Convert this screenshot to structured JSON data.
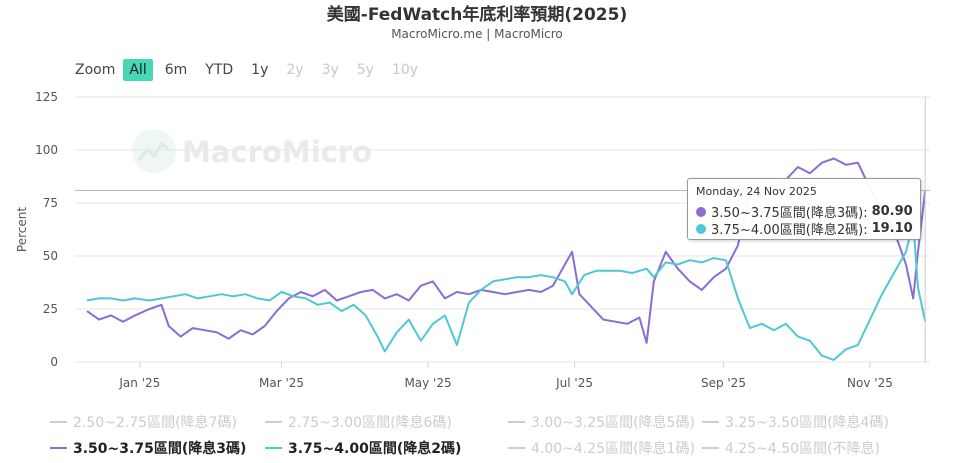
{
  "header": {
    "title": "美國-FedWatch年底利率預期(2025)",
    "subtitle": "MacroMicro.me | MacroMicro"
  },
  "zoom": {
    "label": "Zoom",
    "buttons": [
      {
        "label": "All",
        "state": "active"
      },
      {
        "label": "6m",
        "state": "enabled"
      },
      {
        "label": "YTD",
        "state": "enabled"
      },
      {
        "label": "1y",
        "state": "enabled"
      },
      {
        "label": "2y",
        "state": "disabled"
      },
      {
        "label": "3y",
        "state": "disabled"
      },
      {
        "label": "5y",
        "state": "disabled"
      },
      {
        "label": "10y",
        "state": "disabled"
      }
    ]
  },
  "watermark": {
    "text": "MacroMicro"
  },
  "tooltip": {
    "date": "Monday, 24 Nov 2025",
    "rows": [
      {
        "label": "3.50~3.75區間(降息3碼):",
        "value": "80.90",
        "color": "#8b6cd6"
      },
      {
        "label": "3.75~4.00區間(降息2碼):",
        "value": "19.10",
        "color": "#4ec8d4"
      }
    ]
  },
  "chart_data": {
    "type": "line",
    "title": "美國-FedWatch年底利率預期(2025)",
    "subtitle": "MacroMicro.me | MacroMicro",
    "ylabel": "Percent",
    "ylim": [
      0,
      125
    ],
    "yticks": [
      0,
      25,
      50,
      75,
      100,
      125
    ],
    "xlim": [
      "2024-12-05",
      "2025-11-26"
    ],
    "xticks": [
      {
        "date": "2025-01-01",
        "label": "Jan '25"
      },
      {
        "date": "2025-03-01",
        "label": "Mar '25"
      },
      {
        "date": "2025-05-01",
        "label": "May '25"
      },
      {
        "date": "2025-07-01",
        "label": "Jul '25"
      },
      {
        "date": "2025-09-01",
        "label": "Sep '25"
      },
      {
        "date": "2025-11-01",
        "label": "Nov '25"
      }
    ],
    "crosshair": {
      "date": "2025-11-24",
      "value": 80.9
    },
    "series": [
      {
        "name": "2.50~2.75區間(降息7碼)",
        "color": "#cccccc",
        "visible": false,
        "points": []
      },
      {
        "name": "2.75~3.00區間(降息6碼)",
        "color": "#cccccc",
        "visible": false,
        "points": []
      },
      {
        "name": "3.00~3.25區間(降息5碼)",
        "color": "#cccccc",
        "visible": false,
        "points": []
      },
      {
        "name": "3.25~3.50區間(降息4碼)",
        "color": "#cccccc",
        "visible": false,
        "points": []
      },
      {
        "name": "3.50~3.75區間(降息3碼)",
        "color": "#8b6cd6",
        "visible": true,
        "points": [
          [
            "2024-12-10",
            24
          ],
          [
            "2024-12-15",
            20
          ],
          [
            "2024-12-20",
            22
          ],
          [
            "2024-12-25",
            19
          ],
          [
            "2024-12-30",
            22
          ],
          [
            "2025-01-05",
            25
          ],
          [
            "2025-01-10",
            27
          ],
          [
            "2025-01-13",
            17
          ],
          [
            "2025-01-18",
            12
          ],
          [
            "2025-01-23",
            16
          ],
          [
            "2025-01-28",
            15
          ],
          [
            "2025-02-02",
            14
          ],
          [
            "2025-02-07",
            11
          ],
          [
            "2025-02-12",
            15
          ],
          [
            "2025-02-17",
            13
          ],
          [
            "2025-02-22",
            17
          ],
          [
            "2025-02-27",
            24
          ],
          [
            "2025-03-04",
            30
          ],
          [
            "2025-03-09",
            33
          ],
          [
            "2025-03-14",
            31
          ],
          [
            "2025-03-19",
            34
          ],
          [
            "2025-03-24",
            29
          ],
          [
            "2025-03-29",
            31
          ],
          [
            "2025-04-03",
            33
          ],
          [
            "2025-04-08",
            34
          ],
          [
            "2025-04-13",
            30
          ],
          [
            "2025-04-18",
            32
          ],
          [
            "2025-04-23",
            29
          ],
          [
            "2025-04-28",
            36
          ],
          [
            "2025-05-03",
            38
          ],
          [
            "2025-05-08",
            30
          ],
          [
            "2025-05-13",
            33
          ],
          [
            "2025-05-18",
            32
          ],
          [
            "2025-05-23",
            34
          ],
          [
            "2025-05-28",
            33
          ],
          [
            "2025-06-02",
            32
          ],
          [
            "2025-06-07",
            33
          ],
          [
            "2025-06-12",
            34
          ],
          [
            "2025-06-17",
            33
          ],
          [
            "2025-06-22",
            36
          ],
          [
            "2025-06-27",
            46
          ],
          [
            "2025-06-30",
            52
          ],
          [
            "2025-07-03",
            32
          ],
          [
            "2025-07-08",
            26
          ],
          [
            "2025-07-13",
            20
          ],
          [
            "2025-07-18",
            19
          ],
          [
            "2025-07-23",
            18
          ],
          [
            "2025-07-28",
            21
          ],
          [
            "2025-07-31",
            9
          ],
          [
            "2025-08-03",
            38
          ],
          [
            "2025-08-08",
            52
          ],
          [
            "2025-08-13",
            44
          ],
          [
            "2025-08-18",
            38
          ],
          [
            "2025-08-23",
            34
          ],
          [
            "2025-08-28",
            40
          ],
          [
            "2025-09-02",
            44
          ],
          [
            "2025-09-07",
            55
          ],
          [
            "2025-09-12",
            80
          ],
          [
            "2025-09-17",
            78
          ],
          [
            "2025-09-22",
            82
          ],
          [
            "2025-09-27",
            86
          ],
          [
            "2025-10-02",
            92
          ],
          [
            "2025-10-07",
            89
          ],
          [
            "2025-10-12",
            94
          ],
          [
            "2025-10-17",
            96
          ],
          [
            "2025-10-22",
            93
          ],
          [
            "2025-10-27",
            94
          ],
          [
            "2025-11-01",
            82
          ],
          [
            "2025-11-06",
            72
          ],
          [
            "2025-11-11",
            62
          ],
          [
            "2025-11-16",
            46
          ],
          [
            "2025-11-19",
            30
          ],
          [
            "2025-11-21",
            52
          ],
          [
            "2025-11-24",
            80.9
          ]
        ]
      },
      {
        "name": "3.75~4.00區間(降息2碼)",
        "color": "#4ec8d4",
        "visible": true,
        "points": [
          [
            "2024-12-10",
            29
          ],
          [
            "2024-12-15",
            30
          ],
          [
            "2024-12-20",
            30
          ],
          [
            "2024-12-25",
            29
          ],
          [
            "2024-12-30",
            30
          ],
          [
            "2025-01-05",
            29
          ],
          [
            "2025-01-10",
            30
          ],
          [
            "2025-01-15",
            31
          ],
          [
            "2025-01-20",
            32
          ],
          [
            "2025-01-25",
            30
          ],
          [
            "2025-01-30",
            31
          ],
          [
            "2025-02-04",
            32
          ],
          [
            "2025-02-09",
            31
          ],
          [
            "2025-02-14",
            32
          ],
          [
            "2025-02-19",
            30
          ],
          [
            "2025-02-24",
            29
          ],
          [
            "2025-03-01",
            33
          ],
          [
            "2025-03-06",
            31
          ],
          [
            "2025-03-11",
            30
          ],
          [
            "2025-03-16",
            27
          ],
          [
            "2025-03-21",
            28
          ],
          [
            "2025-03-26",
            24
          ],
          [
            "2025-03-31",
            27
          ],
          [
            "2025-04-05",
            22
          ],
          [
            "2025-04-10",
            12
          ],
          [
            "2025-04-13",
            5
          ],
          [
            "2025-04-18",
            14
          ],
          [
            "2025-04-23",
            20
          ],
          [
            "2025-04-28",
            10
          ],
          [
            "2025-05-03",
            18
          ],
          [
            "2025-05-08",
            22
          ],
          [
            "2025-05-13",
            8
          ],
          [
            "2025-05-18",
            28
          ],
          [
            "2025-05-23",
            34
          ],
          [
            "2025-05-28",
            38
          ],
          [
            "2025-06-02",
            39
          ],
          [
            "2025-06-07",
            40
          ],
          [
            "2025-06-12",
            40
          ],
          [
            "2025-06-17",
            41
          ],
          [
            "2025-06-22",
            40
          ],
          [
            "2025-06-27",
            38
          ],
          [
            "2025-06-30",
            32
          ],
          [
            "2025-07-05",
            41
          ],
          [
            "2025-07-10",
            43
          ],
          [
            "2025-07-15",
            43
          ],
          [
            "2025-07-20",
            43
          ],
          [
            "2025-07-25",
            42
          ],
          [
            "2025-07-31",
            44
          ],
          [
            "2025-08-03",
            40
          ],
          [
            "2025-08-08",
            47
          ],
          [
            "2025-08-13",
            46
          ],
          [
            "2025-08-18",
            48
          ],
          [
            "2025-08-23",
            47
          ],
          [
            "2025-08-28",
            49
          ],
          [
            "2025-09-02",
            48
          ],
          [
            "2025-09-07",
            30
          ],
          [
            "2025-09-12",
            16
          ],
          [
            "2025-09-17",
            18
          ],
          [
            "2025-09-22",
            15
          ],
          [
            "2025-09-27",
            18
          ],
          [
            "2025-10-02",
            12
          ],
          [
            "2025-10-07",
            10
          ],
          [
            "2025-10-12",
            3
          ],
          [
            "2025-10-17",
            1
          ],
          [
            "2025-10-22",
            6
          ],
          [
            "2025-10-27",
            8
          ],
          [
            "2025-11-01",
            20
          ],
          [
            "2025-11-06",
            32
          ],
          [
            "2025-11-11",
            42
          ],
          [
            "2025-11-16",
            52
          ],
          [
            "2025-11-19",
            66
          ],
          [
            "2025-11-21",
            35
          ],
          [
            "2025-11-24",
            19.1
          ]
        ]
      },
      {
        "name": "4.00~4.25區間(降息1碼)",
        "color": "#cccccc",
        "visible": false,
        "points": []
      },
      {
        "name": "4.25~4.50區間(不降息)",
        "color": "#cccccc",
        "visible": false,
        "points": []
      }
    ]
  }
}
